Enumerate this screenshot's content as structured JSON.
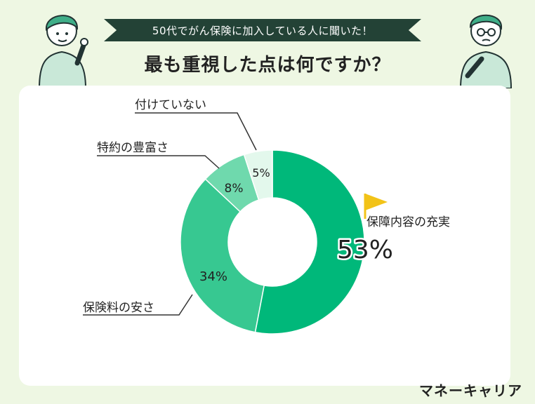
{
  "header": {
    "banner": "50代でがん保険に加入している人に聞いた！",
    "question": "最も重視した点は何ですか？"
  },
  "brand": "マネーキャリア",
  "colors": {
    "background": "#eef7e3",
    "banner": "#234236",
    "flag": "#f2c318"
  },
  "chart_data": {
    "type": "pie",
    "donut": true,
    "unit": "%",
    "slices": [
      {
        "label": "保障内容の充実",
        "value": 53,
        "value_label": "53%",
        "color": "#00b87a"
      },
      {
        "label": "保険料の安さ",
        "value": 34,
        "value_label": "34%",
        "color": "#37c891"
      },
      {
        "label": "特約の豊富さ",
        "value": 8,
        "value_label": "8%",
        "color": "#6fd9ad"
      },
      {
        "label": "付けていない",
        "value": 5,
        "value_label": "5%",
        "color": "#e3f8ec"
      }
    ]
  }
}
